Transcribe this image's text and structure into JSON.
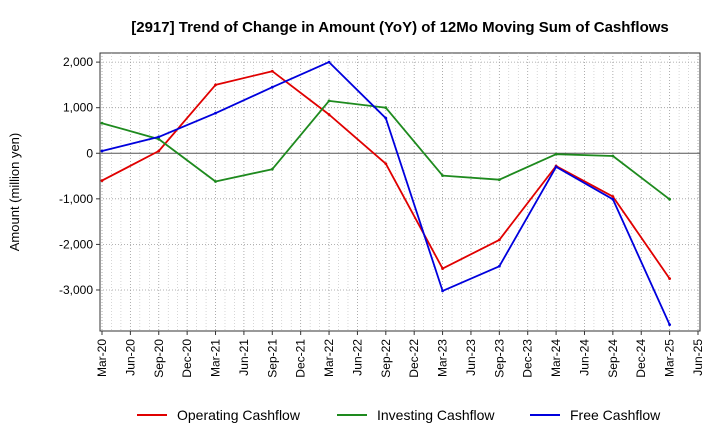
{
  "chart_data": {
    "type": "line",
    "title": "[2917]  Trend of Change in Amount (YoY) of 12Mo Moving Sum of Cashflows",
    "xlabel": "",
    "ylabel": "Amount (million yen)",
    "ylim": [
      -3900,
      2200
    ],
    "yticks": [
      2000,
      1000,
      0,
      -1000,
      -2000,
      -3000
    ],
    "ytick_labels": [
      "2,000",
      "1,000",
      "0",
      "-1,000",
      "-2,000",
      "-3,000"
    ],
    "categories": [
      "Mar-20",
      "Jun-20",
      "Sep-20",
      "Dec-20",
      "Mar-21",
      "Jun-21",
      "Sep-21",
      "Dec-21",
      "Mar-22",
      "Jun-22",
      "Sep-22",
      "Dec-22",
      "Mar-23",
      "Jun-23",
      "Sep-23",
      "Dec-23",
      "Mar-24",
      "Jun-24",
      "Sep-24",
      "Dec-24",
      "Mar-25",
      "Jun-25"
    ],
    "grid": true,
    "legend_position": "bottom",
    "series": [
      {
        "name": "Operating Cashflow",
        "color": "#e00000",
        "values": [
          -600,
          null,
          50,
          null,
          1500,
          null,
          1800,
          null,
          850,
          null,
          -230,
          null,
          -2530,
          null,
          -1900,
          null,
          -280,
          null,
          -950,
          null,
          -2750,
          null
        ]
      },
      {
        "name": "Investing Cashflow",
        "color": "#1e8a1e",
        "values": [
          660,
          null,
          310,
          null,
          -620,
          null,
          -350,
          null,
          1150,
          null,
          1000,
          null,
          -490,
          null,
          -580,
          null,
          -20,
          null,
          -60,
          null,
          -1010,
          null
        ]
      },
      {
        "name": "Free Cashflow",
        "color": "#0000dd",
        "values": [
          50,
          null,
          360,
          null,
          880,
          null,
          1450,
          null,
          2000,
          null,
          770,
          null,
          -3020,
          null,
          -2480,
          null,
          -300,
          null,
          -1010,
          null,
          -3760,
          null
        ]
      }
    ]
  }
}
